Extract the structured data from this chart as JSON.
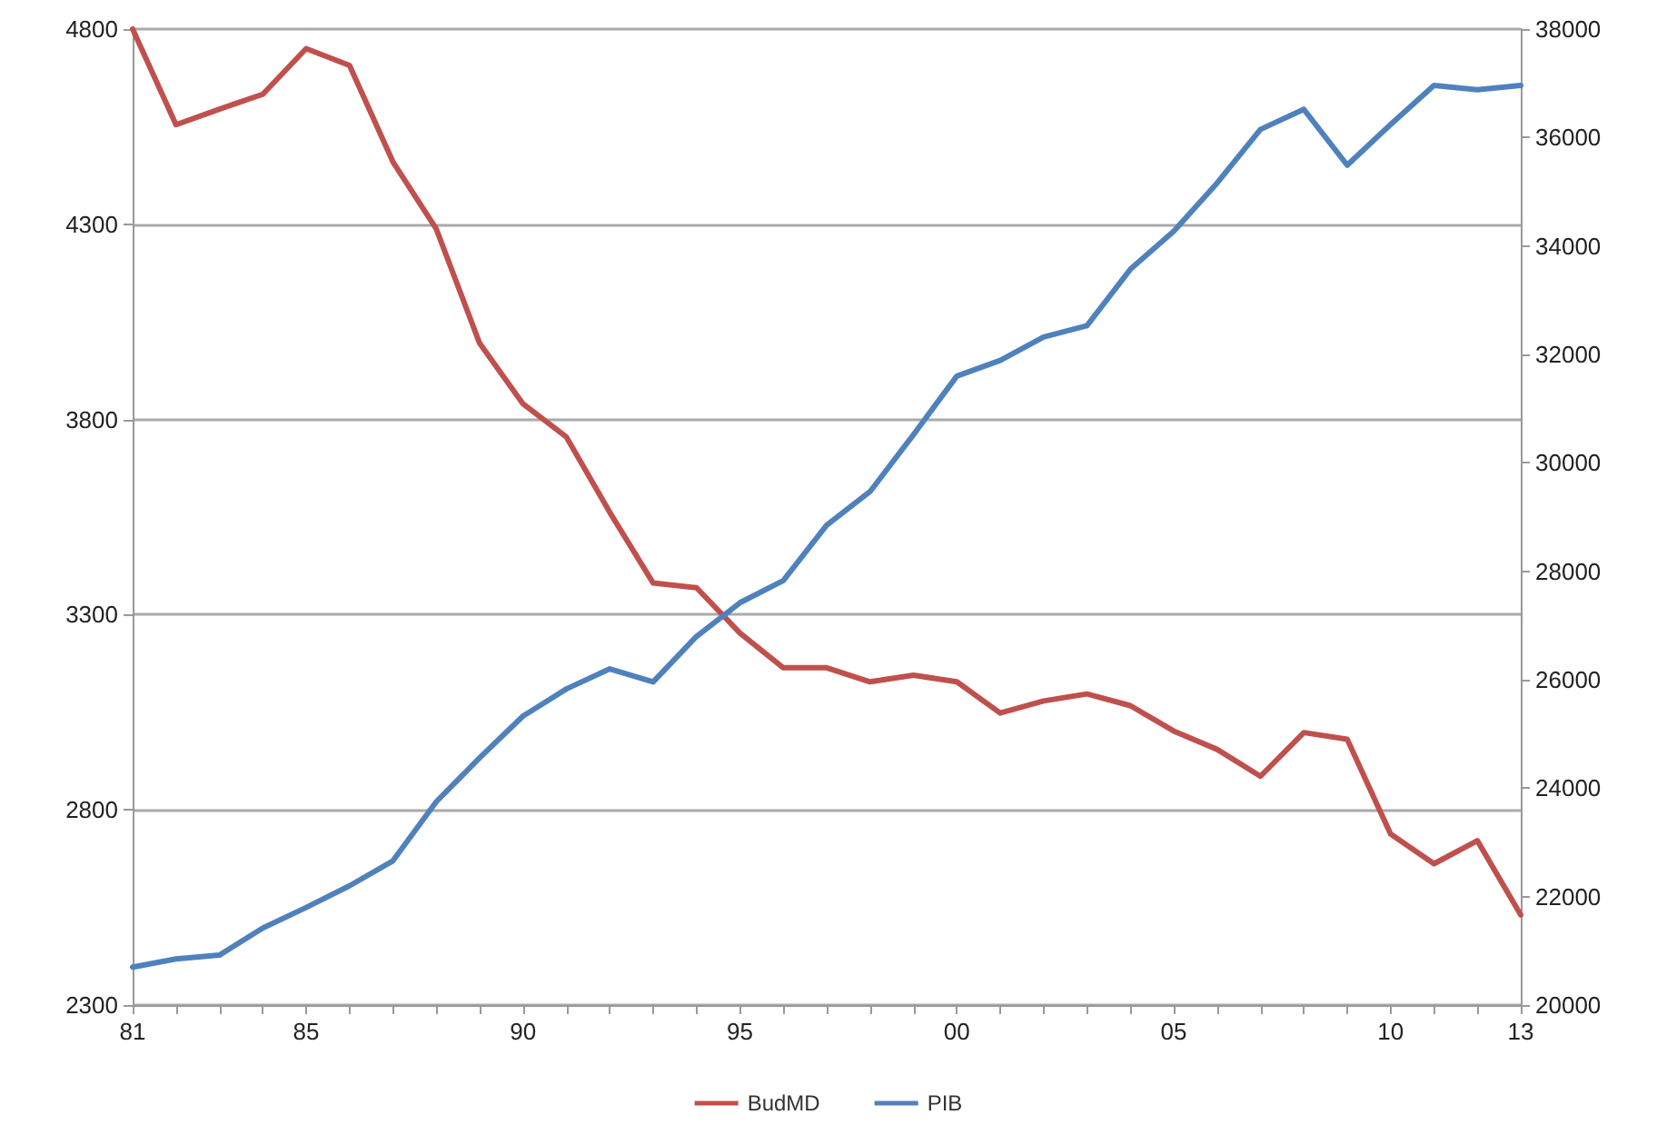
{
  "chart_data": {
    "type": "line",
    "categories": [
      "81",
      null,
      null,
      null,
      "85",
      null,
      null,
      null,
      null,
      "90",
      null,
      null,
      null,
      null,
      "95",
      null,
      null,
      null,
      null,
      "00",
      null,
      null,
      null,
      null,
      "05",
      null,
      null,
      null,
      null,
      "10",
      null,
      null,
      "13"
    ],
    "series": [
      {
        "name": "BudMD",
        "color": "#c0504d",
        "values": [
          4800,
          4555,
          4595,
          4633,
          4750,
          4707,
          4460,
          4288,
          3995,
          3840,
          3755,
          3562,
          3381,
          3369,
          3253,
          3164,
          3164,
          3128,
          3145,
          3128,
          3048,
          3079,
          3097,
          3067,
          3002,
          2955,
          2886,
          2998,
          2981,
          2738,
          2662,
          2721,
          2531
        ]
      },
      {
        "name": "PIB",
        "color": "#4f81bd",
        "axis": "y2",
        "values": [
          20700,
          20850,
          20920,
          21420,
          21800,
          22200,
          22660,
          23750,
          24560,
          25330,
          25830,
          26200,
          25960,
          26800,
          27420,
          27830,
          28850,
          29470,
          30520,
          31600,
          31890,
          32320,
          32530,
          33570,
          34270,
          35160,
          36150,
          36520,
          35490,
          36240,
          36960,
          36880,
          36960
        ]
      }
    ],
    "ylim": [
      2300,
      4800
    ],
    "yticks": [
      2300,
      2800,
      3300,
      3800,
      4300,
      4800
    ],
    "y2lim": [
      20000,
      38000
    ],
    "y2ticks": [
      20000,
      22000,
      24000,
      26000,
      28000,
      30000,
      32000,
      34000,
      36000,
      38000
    ],
    "grid": "y",
    "legend": "bottom",
    "marker": "none",
    "line_style": "solid"
  }
}
